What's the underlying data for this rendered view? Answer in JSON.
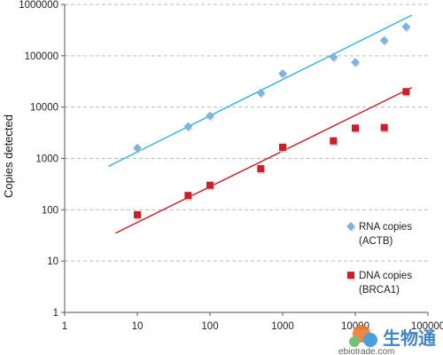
{
  "chart_data": {
    "type": "scatter",
    "title": "",
    "xlabel": "",
    "ylabel": "Copies detected",
    "x_scale": "log",
    "y_scale": "log",
    "xlim": [
      1,
      100000
    ],
    "ylim": [
      1,
      1000000
    ],
    "x_ticks": [
      "1",
      "10",
      "100",
      "1000",
      "10000",
      "100000"
    ],
    "y_ticks": [
      "1",
      "10",
      "100",
      "1000",
      "10000",
      "100000",
      "1000000"
    ],
    "grid": "horizontal dashed",
    "legend_position": "right",
    "series": [
      {
        "name": "RNA copies (ACTB)",
        "legend_lines": [
          "RNA copies",
          "(ACTB)"
        ],
        "marker": "diamond",
        "color": "#7fb3e0",
        "trend_color": "#2ab4d8",
        "points": [
          {
            "x": 10,
            "y": 1600
          },
          {
            "x": 50,
            "y": 4200
          },
          {
            "x": 100,
            "y": 6800
          },
          {
            "x": 500,
            "y": 19000
          },
          {
            "x": 1000,
            "y": 45000
          },
          {
            "x": 5000,
            "y": 95000
          },
          {
            "x": 10000,
            "y": 75000
          },
          {
            "x": 25000,
            "y": 200000
          },
          {
            "x": 50000,
            "y": 370000
          }
        ],
        "trendline": {
          "x": [
            4,
            60000
          ],
          "y": [
            700,
            620000
          ]
        }
      },
      {
        "name": "DNA copies (BRCA1)",
        "legend_lines": [
          "DNA copies",
          "(BRCA1)"
        ],
        "marker": "square",
        "color": "#cc1f2a",
        "trend_color": "#c81f25",
        "points": [
          {
            "x": 10,
            "y": 80
          },
          {
            "x": 50,
            "y": 190
          },
          {
            "x": 100,
            "y": 300
          },
          {
            "x": 500,
            "y": 630
          },
          {
            "x": 1000,
            "y": 1650
          },
          {
            "x": 5000,
            "y": 2200
          },
          {
            "x": 10000,
            "y": 3900
          },
          {
            "x": 25000,
            "y": 4000
          },
          {
            "x": 50000,
            "y": 20000
          }
        ],
        "trendline": {
          "x": [
            5,
            60000
          ],
          "y": [
            35,
            24000
          ]
        }
      }
    ]
  },
  "watermark": {
    "text": "生物通",
    "url": "ebiotrade.com"
  },
  "colors": {
    "axis": "#555555",
    "grid": "#bbbbbb"
  }
}
